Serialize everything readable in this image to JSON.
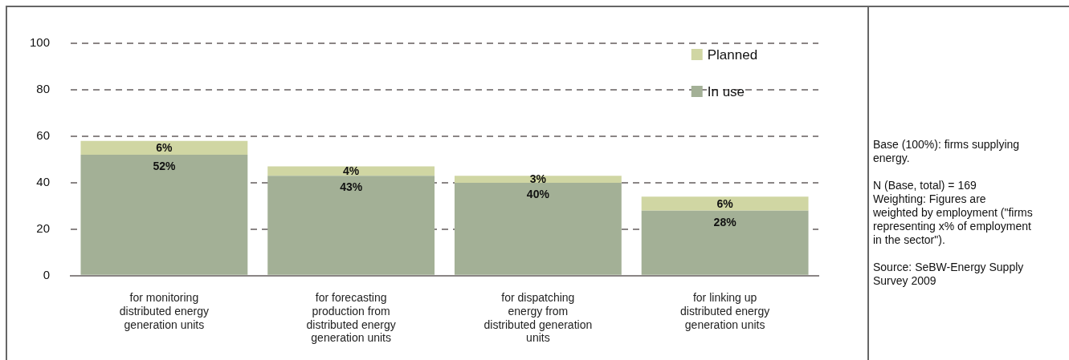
{
  "chart_data": {
    "type": "bar",
    "stacked": true,
    "categories": [
      "for monitoring\ndistributed energy\ngeneration units",
      "for forecasting\nproduction from\ndistributed energy\ngeneration units",
      "for dispatching\nenergy from\ndistributed generation\nunits",
      "for linking up\ndistributed energy\ngeneration units"
    ],
    "series": [
      {
        "name": "In use",
        "color": "#a3b096",
        "values": [
          52,
          43,
          40,
          28
        ],
        "value_labels": [
          "52%",
          "43%",
          "40%",
          "28%"
        ]
      },
      {
        "name": "Planned",
        "color": "#d0d6a3",
        "values": [
          6,
          4,
          3,
          6
        ],
        "value_labels": [
          "6%",
          "4%",
          "3%",
          "6%"
        ]
      }
    ],
    "ylim": [
      0,
      100
    ],
    "yticks": [
      0,
      20,
      40,
      60,
      80,
      100
    ],
    "grid": "y",
    "legend": "top right",
    "annotations": [
      "Base (100%): firms supplying energy.",
      "N (Base, total) = 169\nWeighting: Figures are weighted by employment (\"firms representing x% of employment in the sector\").",
      "Source: SeBW-Energy Supply Survey 2009"
    ]
  }
}
